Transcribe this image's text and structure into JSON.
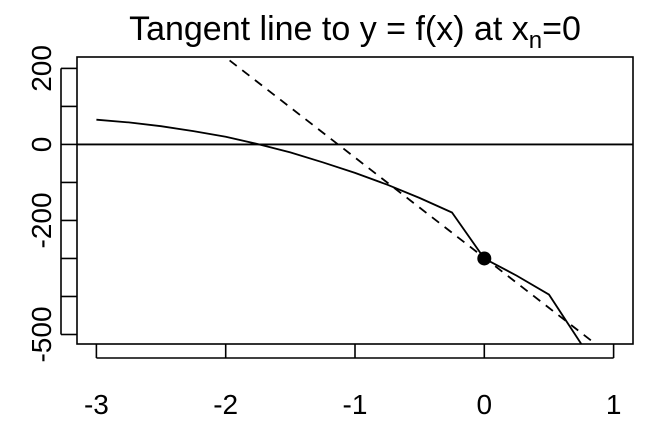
{
  "chart_data": {
    "type": "line",
    "title": "Tangent line to y = f(x) at x",
    "title_subscript": "n",
    "title_suffix": "=0",
    "xlabel": "",
    "ylabel": "",
    "xlim": [
      -3.15,
      1.15
    ],
    "ylim": [
      -525,
      230
    ],
    "x_ticks": [
      -3,
      -2,
      -1,
      0,
      1
    ],
    "y_ticks": [
      -500,
      -400,
      -300,
      -200,
      -100,
      0,
      100,
      200
    ],
    "y_tick_labels": [
      {
        "value": -500,
        "label": "-500"
      },
      {
        "value": -200,
        "label": "-200"
      },
      {
        "value": 0,
        "label": "0"
      },
      {
        "value": 200,
        "label": "200"
      }
    ],
    "x_tick_labels": [
      {
        "value": -3,
        "label": "-3"
      },
      {
        "value": -2,
        "label": "-2"
      },
      {
        "value": -1,
        "label": "-1"
      },
      {
        "value": 0,
        "label": "0"
      },
      {
        "value": 1,
        "label": "1"
      }
    ],
    "grid": false,
    "series": [
      {
        "style": "solid",
        "color": "#000000",
        "x": [
          -3,
          -2.75,
          -2.5,
          -2.25,
          -2,
          -1.75,
          -1.5,
          -1.25,
          -1,
          -0.75,
          -0.5,
          -0.25,
          0,
          0.25,
          0.5,
          0.75
        ],
        "y": [
          65,
          58,
          48,
          35,
          20,
          1,
          -21,
          -47,
          -75,
          -106,
          -141,
          -179,
          -300,
          -345,
          -395,
          -525
        ]
      },
      {
        "style": "dashed",
        "color": "#000000",
        "x": [
          -1.97,
          0.85
        ],
        "y": [
          221,
          -522
        ]
      }
    ],
    "reference_lines": [
      {
        "orientation": "horizontal",
        "y": 0,
        "style": "solid",
        "color": "#000000"
      }
    ],
    "points": [
      {
        "x": 0,
        "y": -300,
        "color": "#000000"
      }
    ]
  }
}
